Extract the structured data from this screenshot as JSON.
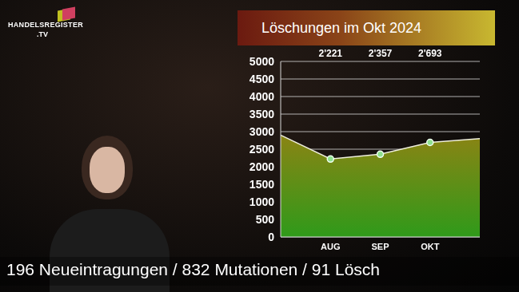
{
  "chart_data": {
    "type": "area",
    "title": "Löschungen im Okt 2024",
    "categories": [
      null,
      "AUG",
      "SEP",
      "OKT",
      null
    ],
    "values": [
      2900,
      2221,
      2357,
      2693,
      2800
    ],
    "value_labels": [
      null,
      "2'221",
      "2'357",
      "2'693",
      null
    ],
    "data_labels": true,
    "ylim": [
      0,
      5000
    ],
    "yticks": [
      0,
      500,
      1000,
      1500,
      2000,
      2500,
      3000,
      3500,
      4000,
      4500,
      5000
    ],
    "grid": true,
    "color": "#2f9a1a",
    "marker": "circle"
  },
  "logo": {
    "name": "HANDELSREGISTER",
    "suffix": ".TV"
  },
  "ticker": "196 Neueintragungen / 832 Mutationen / 91 Lösch"
}
